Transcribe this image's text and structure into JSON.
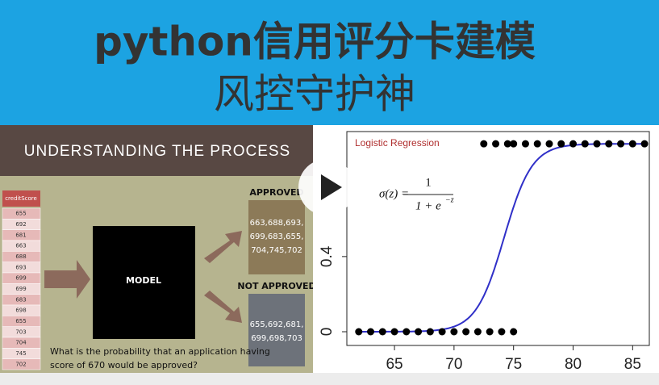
{
  "banner": {
    "title_lines": [
      "python信用评分卡建模",
      "风控守护神"
    ]
  },
  "process": {
    "heading": "UNDERSTANDING THE PROCESS",
    "table": {
      "header": "creditScore",
      "rows": [
        "655",
        "692",
        "681",
        "663",
        "688",
        "693",
        "699",
        "699",
        "683",
        "698",
        "655",
        "703",
        "704",
        "745",
        "702"
      ]
    },
    "model": "MODEL",
    "approved": {
      "label": "APPROVED",
      "lines": [
        "663,688,693,",
        "699,683,655,",
        "704,745,702"
      ]
    },
    "not_approved": {
      "label": "NOT APPROVED",
      "lines": [
        "655,692,681,",
        "699,698,703"
      ]
    },
    "question": [
      "What is the probability that an application having",
      "score of 670 would be approved?"
    ]
  },
  "plot": {
    "title": "Logistic Regression",
    "formula": {
      "lhs": "σ(z) =",
      "numerator": "1",
      "denominator": "1 + e",
      "exponent": "−z"
    },
    "xlim": [
      61,
      86.4
    ],
    "ylim": [
      -0.073,
      1.065
    ],
    "xticks": [
      65,
      70,
      75,
      80,
      85
    ],
    "yticks": [
      0.0,
      0.4
    ],
    "points": {
      "x": [
        62,
        63,
        64,
        65,
        66,
        67,
        68,
        69,
        70,
        71,
        72,
        73,
        74,
        75,
        72.5,
        73.5,
        74.5,
        75,
        76,
        77,
        78,
        79,
        80,
        81,
        82,
        83,
        84,
        85,
        86
      ],
      "y": [
        0,
        0,
        0,
        0,
        0,
        0,
        0,
        0,
        0,
        0,
        0,
        0,
        0,
        0,
        1,
        1,
        1,
        1,
        1,
        1,
        1,
        1,
        1,
        1,
        1,
        1,
        1,
        1,
        1
      ]
    },
    "curve": {
      "midpoint": 74.2,
      "slope": 0.85,
      "color": "#3030c8"
    }
  }
}
